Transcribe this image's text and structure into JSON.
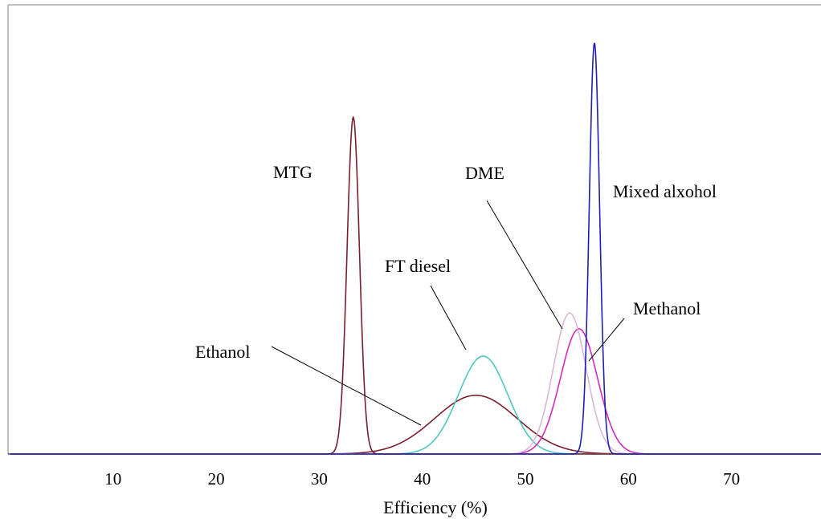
{
  "chart_data": {
    "type": "line",
    "title": "",
    "xlabel": "Efficiency (%)",
    "ylabel": "",
    "xlim": [
      0,
      80
    ],
    "x_ticks": [
      10,
      20,
      30,
      40,
      50,
      60,
      70
    ],
    "grid": false,
    "legend": "none",
    "series": [
      {
        "name": "MTG",
        "color": "#7a1f2e",
        "mean": 33.3,
        "sd": 0.6,
        "peak": 0.86
      },
      {
        "name": "Ethanol",
        "color": "#7a1f2e",
        "mean": 45.2,
        "sd": 4.0,
        "peak": 0.15
      },
      {
        "name": "FT diesel",
        "color": "#4cc9c0",
        "mean": 45.9,
        "sd": 2.4,
        "peak": 0.25
      },
      {
        "name": "DME",
        "color": "#d9b8d6",
        "mean": 54.3,
        "sd": 1.6,
        "peak": 0.36
      },
      {
        "name": "Methanol",
        "color": "#d42bb8",
        "mean": 55.2,
        "sd": 1.8,
        "peak": 0.32
      },
      {
        "name": "Mixed alxohol",
        "color": "#1f1fb0",
        "mean": 56.7,
        "sd": 0.5,
        "peak": 1.05
      }
    ]
  }
}
